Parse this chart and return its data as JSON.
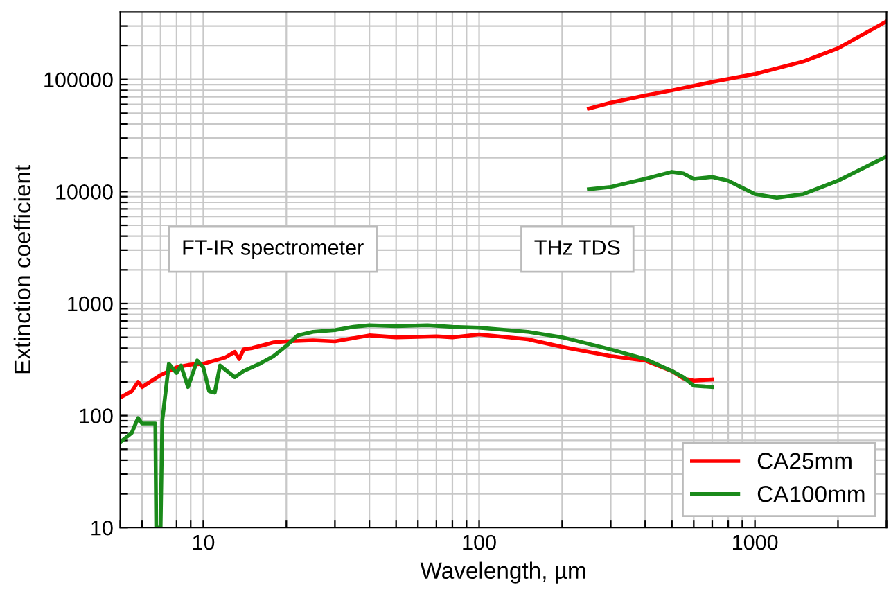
{
  "chart_data": {
    "type": "line",
    "xlabel": "Wavelength, µm",
    "ylabel": "Extinction coefficient",
    "log": "xy",
    "grid": true,
    "legend": "bottom right",
    "line_style": "solid",
    "xlim": [
      5,
      3000
    ],
    "ylim": [
      10,
      400000
    ],
    "xticks": [
      {
        "value": 5,
        "label": null
      },
      {
        "value": 6,
        "label": null
      },
      {
        "value": 7,
        "label": null
      },
      {
        "value": 8,
        "label": null
      },
      {
        "value": 9,
        "label": null
      },
      10,
      {
        "value": 20,
        "label": null
      },
      {
        "value": 30,
        "label": null
      },
      {
        "value": 40,
        "label": null
      },
      {
        "value": 50,
        "label": null
      },
      {
        "value": 60,
        "label": null
      },
      {
        "value": 70,
        "label": null
      },
      {
        "value": 80,
        "label": null
      },
      {
        "value": 90,
        "label": null
      },
      100,
      {
        "value": 200,
        "label": null
      },
      {
        "value": 300,
        "label": null
      },
      {
        "value": 400,
        "label": null
      },
      {
        "value": 500,
        "label": null
      },
      {
        "value": 600,
        "label": null
      },
      {
        "value": 700,
        "label": null
      },
      {
        "value": 800,
        "label": null
      },
      {
        "value": 900,
        "label": null
      },
      1000,
      {
        "value": 2000,
        "label": null
      },
      {
        "value": 3000,
        "label": null
      }
    ],
    "yticks": [
      10,
      {
        "value": 20,
        "label": null
      },
      {
        "value": 30,
        "label": null
      },
      {
        "value": 40,
        "label": null
      },
      {
        "value": 50,
        "label": null
      },
      {
        "value": 60,
        "label": null
      },
      {
        "value": 70,
        "label": null
      },
      {
        "value": 80,
        "label": null
      },
      {
        "value": 90,
        "label": null
      },
      100,
      {
        "value": 200,
        "label": null
      },
      {
        "value": 300,
        "label": null
      },
      {
        "value": 400,
        "label": null
      },
      {
        "value": 500,
        "label": null
      },
      {
        "value": 600,
        "label": null
      },
      {
        "value": 700,
        "label": null
      },
      {
        "value": 800,
        "label": null
      },
      {
        "value": 900,
        "label": null
      },
      1000,
      {
        "value": 2000,
        "label": null
      },
      {
        "value": 3000,
        "label": null
      },
      {
        "value": 4000,
        "label": null
      },
      {
        "value": 5000,
        "label": null
      },
      {
        "value": 6000,
        "label": null
      },
      {
        "value": 7000,
        "label": null
      },
      {
        "value": 8000,
        "label": null
      },
      {
        "value": 9000,
        "label": null
      },
      10000,
      {
        "value": 20000,
        "label": null
      },
      {
        "value": 30000,
        "label": null
      },
      {
        "value": 40000,
        "label": null
      },
      {
        "value": 50000,
        "label": null
      },
      {
        "value": 60000,
        "label": null
      },
      {
        "value": 70000,
        "label": null
      },
      {
        "value": 80000,
        "label": null
      },
      {
        "value": 90000,
        "label": null
      },
      100000,
      {
        "value": 200000,
        "label": null
      },
      {
        "value": 300000,
        "label": null
      }
    ],
    "annotations": [
      "FT-IR spectrometer",
      "THz TDS"
    ],
    "series": [
      {
        "name": "CA25mm",
        "color": "#ff0000",
        "x": [
          5,
          5.5,
          5.8,
          6,
          7,
          8,
          9,
          10,
          12,
          13,
          13.5,
          14,
          15,
          18,
          20,
          25,
          30,
          40,
          50,
          60,
          70,
          80,
          100,
          150,
          200,
          300,
          400,
          500,
          550,
          600,
          700
        ],
        "values": [
          145,
          165,
          200,
          180,
          230,
          270,
          285,
          290,
          330,
          370,
          320,
          390,
          400,
          450,
          460,
          470,
          460,
          520,
          500,
          505,
          510,
          500,
          530,
          480,
          410,
          340,
          310,
          250,
          215,
          205,
          210
        ]
      },
      {
        "name": "CA100mm",
        "color": "#1a8a1a",
        "x": [
          5,
          5.5,
          5.8,
          6,
          6.5,
          6.7,
          6.75,
          7.0,
          7.1,
          7.5,
          8,
          8.3,
          8.8,
          9.5,
          10,
          10.5,
          11,
          11.5,
          13,
          14,
          16,
          18,
          20,
          22,
          25,
          30,
          35,
          40,
          50,
          65,
          80,
          100,
          150,
          200,
          300,
          400,
          500,
          550,
          600,
          700
        ],
        "values": [
          58,
          70,
          95,
          85,
          85,
          85,
          10,
          10,
          90,
          290,
          240,
          280,
          180,
          310,
          270,
          165,
          160,
          280,
          220,
          250,
          290,
          340,
          420,
          520,
          560,
          580,
          620,
          640,
          630,
          640,
          620,
          610,
          560,
          500,
          390,
          320,
          250,
          220,
          185,
          180
        ]
      },
      {
        "color": "#ff0000",
        "x": [
          250,
          300,
          400,
          500,
          700,
          1000,
          1500,
          2000,
          3000
        ],
        "values": [
          55000,
          62000,
          72000,
          80000,
          95000,
          112000,
          145000,
          190000,
          330000
        ]
      },
      {
        "color": "#1a8a1a",
        "x": [
          250,
          300,
          400,
          500,
          550,
          600,
          700,
          800,
          1000,
          1200,
          1500,
          2000,
          3000
        ],
        "values": [
          10500,
          11000,
          13000,
          15000,
          14500,
          13000,
          13500,
          12500,
          9500,
          8800,
          9500,
          12500,
          20500
        ]
      }
    ]
  }
}
